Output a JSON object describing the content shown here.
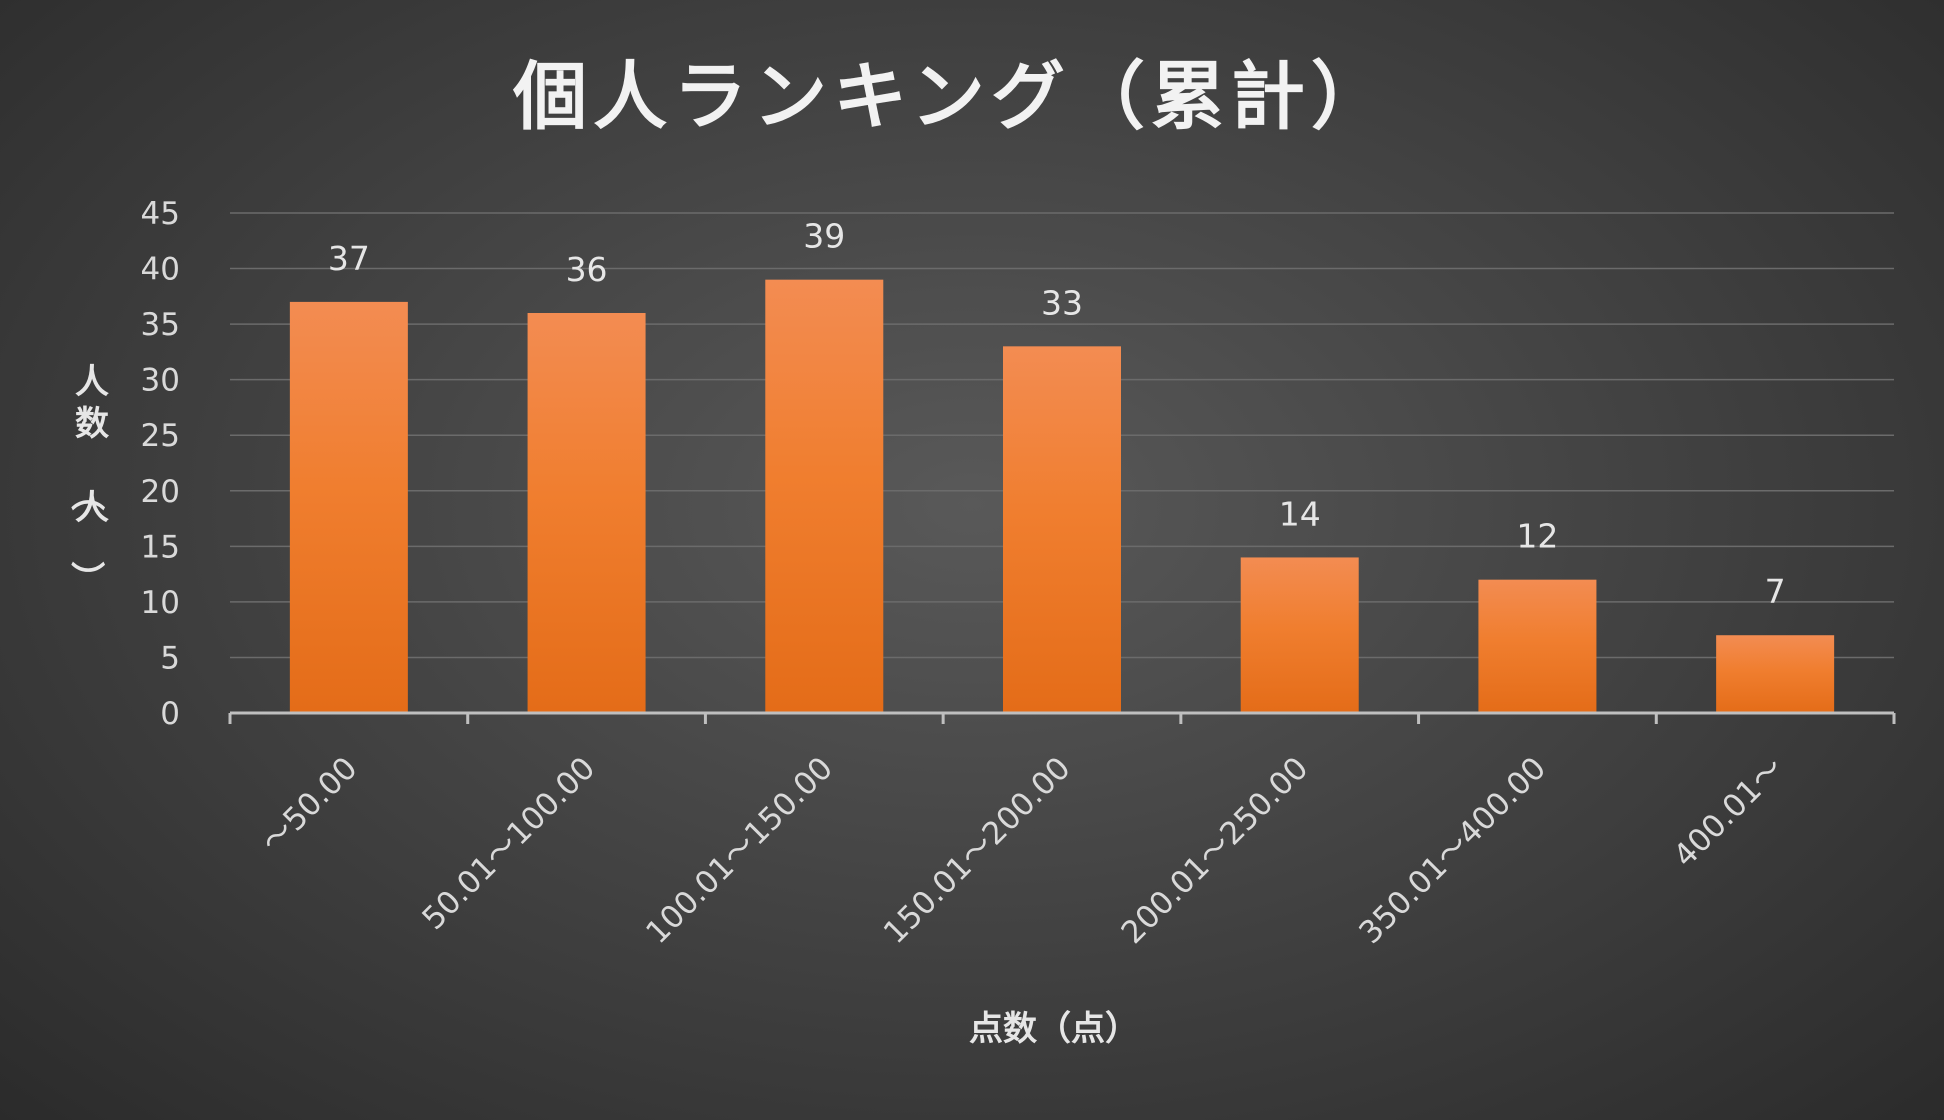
{
  "chart_data": {
    "type": "bar",
    "title": "個人ランキング（累計）",
    "xlabel": "点数（点）",
    "ylabel": "人数（人）",
    "categories": [
      "～50.00",
      "50.01～100.00",
      "100.01～150.00",
      "150.01～200.00",
      "200.01～250.00",
      "350.01～400.00",
      "400.01～"
    ],
    "values": [
      37,
      36,
      39,
      33,
      14,
      12,
      7
    ],
    "ylim": [
      0,
      45
    ],
    "yticks": [
      0,
      5,
      10,
      15,
      20,
      25,
      30,
      35,
      40,
      45
    ],
    "grid": true,
    "legend": "none",
    "bar_color": "#ed7d31",
    "data_labels": true
  }
}
